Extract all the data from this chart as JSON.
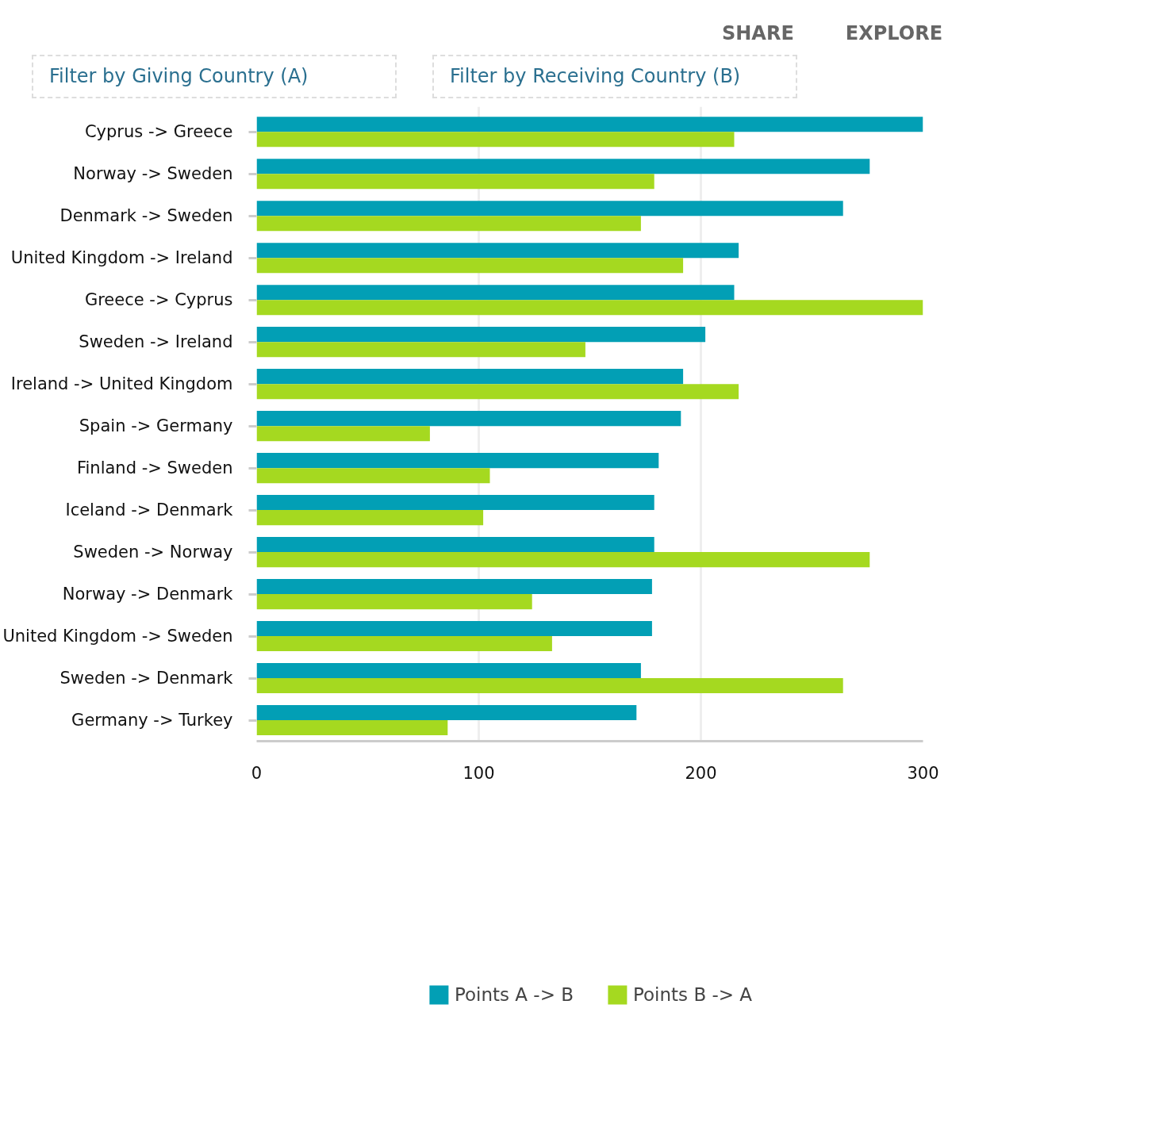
{
  "chart_data": {
    "type": "bar",
    "orientation": "horizontal",
    "categories": [
      "Cyprus -> Greece",
      "Norway -> Sweden",
      "Denmark -> Sweden",
      "United Kingdom -> Ireland",
      "Greece -> Cyprus",
      "Sweden -> Ireland",
      "Ireland -> United Kingdom",
      "Spain -> Germany",
      "Finland -> Sweden",
      "Iceland -> Denmark",
      "Sweden -> Norway",
      "Norway -> Denmark",
      "United Kingdom -> Sweden",
      "Sweden -> Denmark",
      "Germany -> Turkey"
    ],
    "series": [
      {
        "name": "Points A -> B",
        "color": "#029fb5",
        "values": [
          300,
          276,
          264,
          217,
          215,
          202,
          192,
          191,
          181,
          179,
          179,
          178,
          178,
          173,
          171
        ]
      },
      {
        "name": "Points B -> A",
        "color": "#a5d920",
        "values": [
          215,
          179,
          173,
          192,
          300,
          148,
          217,
          78,
          105,
          102,
          276,
          124,
          133,
          264,
          86
        ]
      }
    ],
    "xlim": [
      0,
      300
    ],
    "xticks": [
      0,
      100,
      200,
      300
    ],
    "grid": "x",
    "legend": "bottom",
    "annotations": [
      "SHARE",
      "EXPLORE",
      "Filter by Giving Country (A)",
      "Filter by Receiving Country (B)"
    ]
  }
}
